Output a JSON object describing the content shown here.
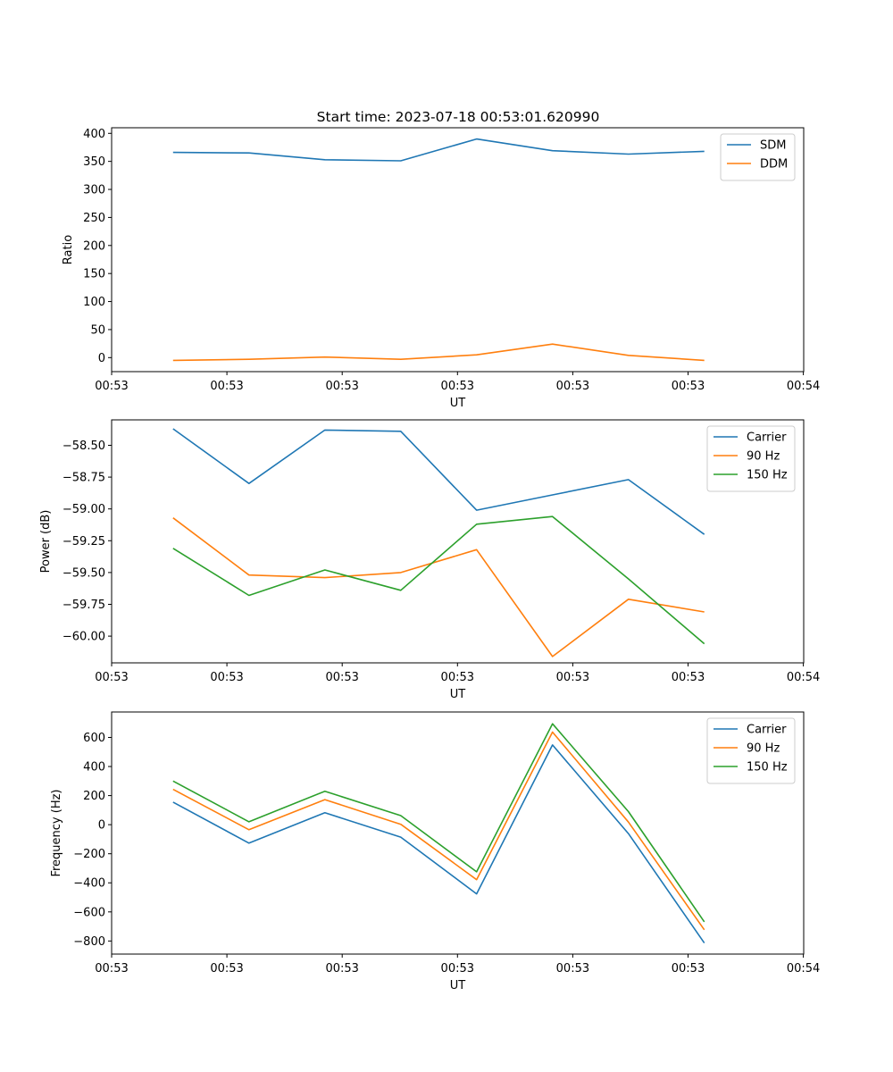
{
  "figure": {
    "title": "Start time: 2023-07-18 00:53:01.620990"
  },
  "chart_data": [
    {
      "type": "line",
      "title": "Start time: 2023-07-18 00:53:01.620990",
      "xlabel": "UT",
      "ylabel": "Ratio",
      "x": [
        1,
        2,
        3,
        4,
        5,
        6,
        7,
        8
      ],
      "xlim": [
        0.1905,
        9.3095
      ],
      "xticks": [
        0.1905,
        1.7095,
        3.2286,
        4.7476,
        6.2667,
        7.7857,
        9.3048
      ],
      "xticklabels": [
        "00:53",
        "00:53",
        "00:53",
        "00:53",
        "00:53",
        "00:53",
        "00:54"
      ],
      "ylim": [
        -25,
        410
      ],
      "yticks": [
        0,
        50,
        100,
        150,
        200,
        250,
        300,
        350,
        400
      ],
      "yticklabels": [
        "0",
        "50",
        "100",
        "150",
        "200",
        "250",
        "300",
        "350",
        "400"
      ],
      "legend_position": "top-right",
      "series": [
        {
          "name": "SDM",
          "color": "#1f77b4",
          "values": [
            366,
            365,
            353,
            351,
            390,
            369,
            363,
            368
          ]
        },
        {
          "name": "DDM",
          "color": "#ff7f0e",
          "values": [
            -5,
            -3,
            1,
            -3,
            5,
            24,
            4,
            -5
          ]
        }
      ]
    },
    {
      "type": "line",
      "title": "",
      "xlabel": "UT",
      "ylabel": "Power (dB)",
      "x": [
        1,
        2,
        3,
        4,
        5,
        6,
        7,
        8
      ],
      "xlim": [
        0.1905,
        9.3095
      ],
      "xticks": [
        0.1905,
        1.7095,
        3.2286,
        4.7476,
        6.2667,
        7.7857,
        9.3048
      ],
      "xticklabels": [
        "00:53",
        "00:53",
        "00:53",
        "00:53",
        "00:53",
        "00:53",
        "00:54"
      ],
      "ylim": [
        -60.21,
        -58.3
      ],
      "yticks": [
        -60.0,
        -59.75,
        -59.5,
        -59.25,
        -59.0,
        -58.75,
        -58.5
      ],
      "yticklabels": [
        "−60.00",
        "−59.75",
        "−59.50",
        "−59.25",
        "−59.00",
        "−58.75",
        "−58.50"
      ],
      "legend_position": "top-right",
      "series": [
        {
          "name": "Carrier",
          "color": "#1f77b4",
          "values": [
            -58.37,
            -58.8,
            -58.38,
            -58.39,
            -59.01,
            -58.89,
            -58.77,
            -59.2
          ]
        },
        {
          "name": "90 Hz",
          "color": "#ff7f0e",
          "values": [
            -59.07,
            -59.52,
            -59.54,
            -59.5,
            -59.32,
            -60.16,
            -59.71,
            -59.81
          ]
        },
        {
          "name": "150 Hz",
          "color": "#2ca02c",
          "values": [
            -59.31,
            -59.68,
            -59.48,
            -59.64,
            -59.12,
            -59.06,
            -59.55,
            -60.06
          ]
        }
      ]
    },
    {
      "type": "line",
      "title": "",
      "xlabel": "UT",
      "ylabel": "Frequency (Hz)",
      "x": [
        1,
        2,
        3,
        4,
        5,
        6,
        7,
        8
      ],
      "xlim": [
        0.1905,
        9.3095
      ],
      "xticks": [
        0.1905,
        1.7095,
        3.2286,
        4.7476,
        6.2667,
        7.7857,
        9.3048
      ],
      "xticklabels": [
        "00:53",
        "00:53",
        "00:53",
        "00:53",
        "00:53",
        "00:53",
        "00:54"
      ],
      "ylim": [
        -890,
        775
      ],
      "yticks": [
        -800,
        -600,
        -400,
        -200,
        0,
        200,
        400,
        600
      ],
      "yticklabels": [
        "−800",
        "−600",
        "−400",
        "−200",
        "0",
        "200",
        "400",
        "600"
      ],
      "legend_position": "top-right",
      "series": [
        {
          "name": "Carrier",
          "color": "#1f77b4",
          "values": [
            155,
            -127,
            82,
            -86,
            -476,
            548,
            -61,
            -814
          ]
        },
        {
          "name": "90 Hz",
          "color": "#ff7f0e",
          "values": [
            243,
            -35,
            172,
            3,
            -378,
            637,
            18,
            -723
          ]
        },
        {
          "name": "150 Hz",
          "color": "#2ca02c",
          "values": [
            300,
            20,
            230,
            62,
            -324,
            694,
            90,
            -668
          ]
        }
      ]
    }
  ]
}
